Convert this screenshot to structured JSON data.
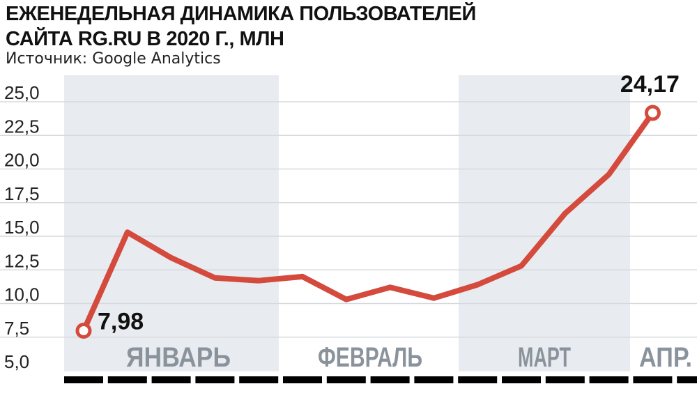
{
  "title_lines": [
    "ЕЖЕНЕДЕЛЬНАЯ ДИНАМИКА ПОЛЬЗОВАТЕЛЕЙ",
    "САЙТА RG.RU В 2020 Г., МЛН"
  ],
  "source": "Источник: Google Analytics",
  "colors": {
    "line": "#d44a3c",
    "band": "#e8ecf0",
    "grid": "#d6dade",
    "month_label": "#8a939c",
    "axis_text": "#222222",
    "ticks": "#000000"
  },
  "chart_data": {
    "type": "line",
    "title": "ЕЖЕНЕДЕЛЬНАЯ ДИНАМИКА ПОЛЬЗОВАТЕЛЕЙ САЙТА RG.RU В 2020 Г., МЛН",
    "xlabel": "",
    "ylabel": "",
    "ylim": [
      5.0,
      25.0
    ],
    "yticks": [
      "5,0",
      "7,5",
      "10,0",
      "12,5",
      "15,0",
      "17,5",
      "20,0",
      "22,5",
      "25,0"
    ],
    "months": [
      "ЯНВАРЬ",
      "ФЕВРАЛЬ",
      "МАРТ",
      "АПР."
    ],
    "series": [
      {
        "values": [
          7.98,
          15.3,
          13.4,
          11.9,
          11.7,
          12.0,
          10.3,
          11.2,
          10.4,
          11.4,
          12.8,
          16.7,
          19.6,
          24.17
        ]
      }
    ],
    "data_labels": [
      {
        "index": 0,
        "text": "7,98"
      },
      {
        "index": 13,
        "text": "24,17"
      }
    ],
    "grid": true
  }
}
